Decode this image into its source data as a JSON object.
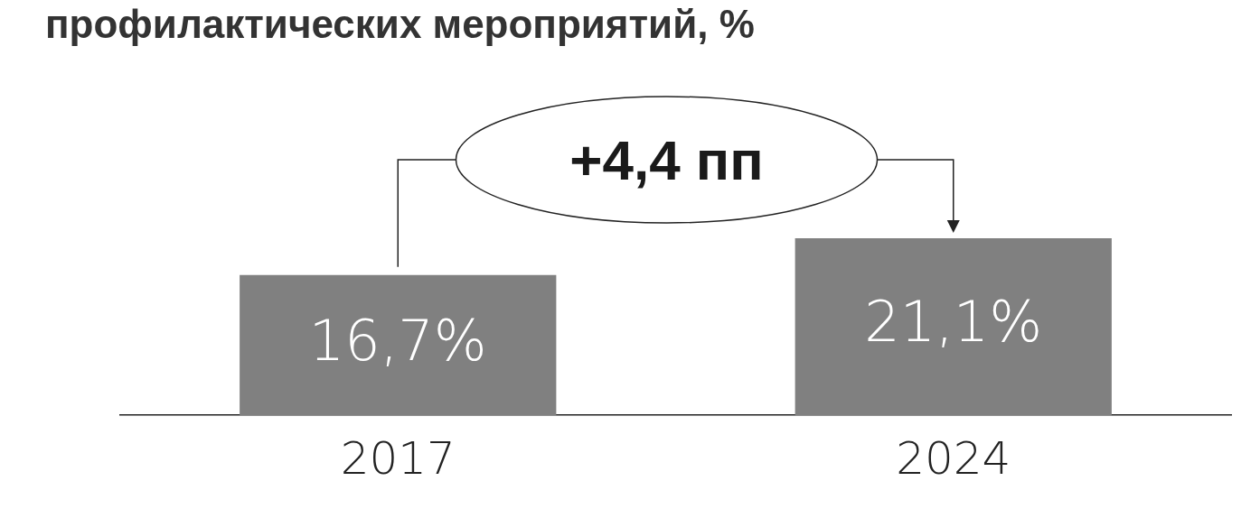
{
  "chart_data": {
    "type": "bar",
    "title": "профилактических мероприятий, %",
    "categories": [
      "2017",
      "2024"
    ],
    "values": [
      16.7,
      21.1
    ],
    "value_labels": [
      "16,7%",
      "21,1%"
    ],
    "color": "#808080",
    "tick_labels": "x",
    "grid": false,
    "legend": false,
    "annotations": [
      "+4,4 пп"
    ]
  }
}
